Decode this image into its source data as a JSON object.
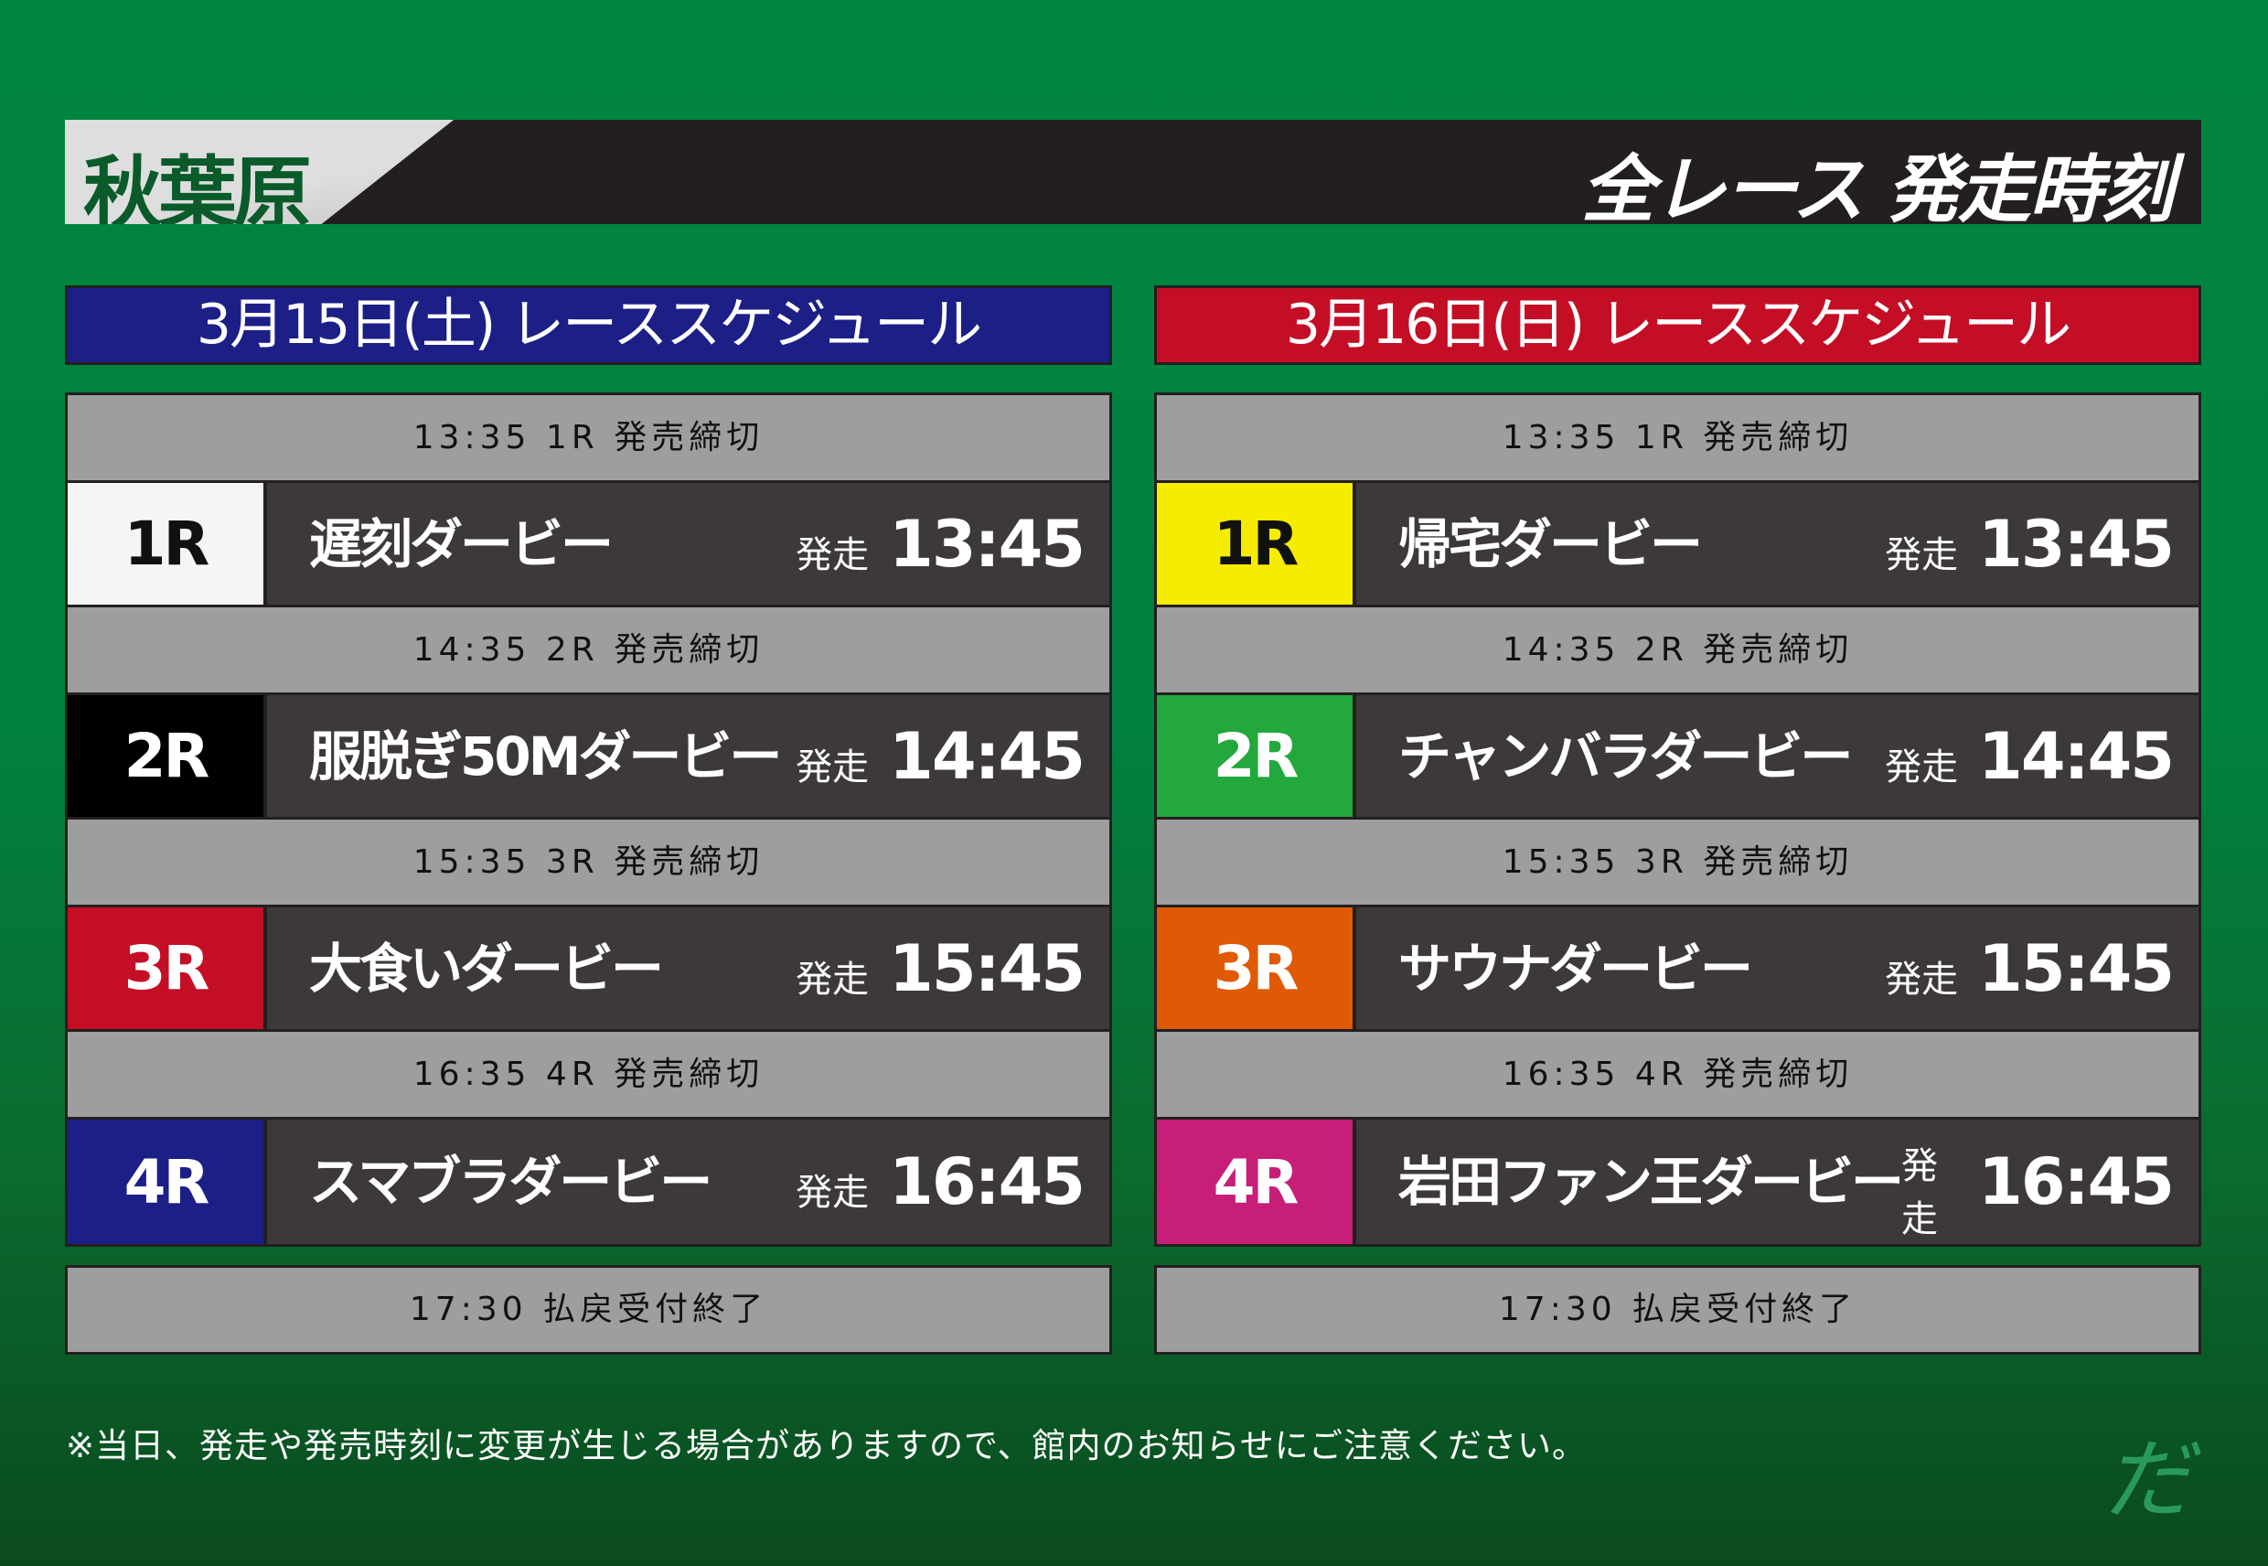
{
  "header": {
    "venue": "秋葉原",
    "title": "全レース 発走時刻"
  },
  "start_label": "発走",
  "days": [
    {
      "heading": "3月15日(土) レーススケジュール",
      "color": "#1c1f86",
      "races": [
        {
          "cutoff": "13:35 1R 発売締切",
          "num": "1R",
          "name": "遅刻ダービー",
          "time": "13:45",
          "badge_bg": "#f5f5f5",
          "badge_fg": "#111111"
        },
        {
          "cutoff": "14:35 2R 発売締切",
          "num": "2R",
          "name": "服脱ぎ50Mダービー",
          "time": "14:45",
          "badge_bg": "#000000",
          "badge_fg": "#ffffff"
        },
        {
          "cutoff": "15:35 3R 発売締切",
          "num": "3R",
          "name": "大食いダービー",
          "time": "15:45",
          "badge_bg": "#c40e25",
          "badge_fg": "#ffffff"
        },
        {
          "cutoff": "16:35 4R 発売締切",
          "num": "4R",
          "name": "スマブラダービー",
          "time": "16:45",
          "badge_bg": "#1c1f86",
          "badge_fg": "#ffffff"
        }
      ],
      "final": "17:30 払戻受付終了"
    },
    {
      "heading": "3月16日(日) レーススケジュール",
      "color": "#c40e25",
      "races": [
        {
          "cutoff": "13:35 1R 発売締切",
          "num": "1R",
          "name": "帰宅ダービー",
          "time": "13:45",
          "badge_bg": "#f5ec00",
          "badge_fg": "#111111"
        },
        {
          "cutoff": "14:35 2R 発売締切",
          "num": "2R",
          "name": "チャンバラダービー",
          "time": "14:45",
          "badge_bg": "#22a83c",
          "badge_fg": "#ffffff"
        },
        {
          "cutoff": "15:35 3R 発売締切",
          "num": "3R",
          "name": "サウナダービー",
          "time": "15:45",
          "badge_bg": "#e05a06",
          "badge_fg": "#ffffff"
        },
        {
          "cutoff": "16:35 4R 発売締切",
          "num": "4R",
          "name": "岩田ファン王ダービー",
          "time": "16:45",
          "badge_bg": "#c71f78",
          "badge_fg": "#ffffff"
        }
      ],
      "final": "17:30 払戻受付終了"
    }
  ],
  "note": "※当日、発走や発売時刻に変更が生じる場合がありますので、館内のお知らせにご注意ください。",
  "logo": "だ"
}
